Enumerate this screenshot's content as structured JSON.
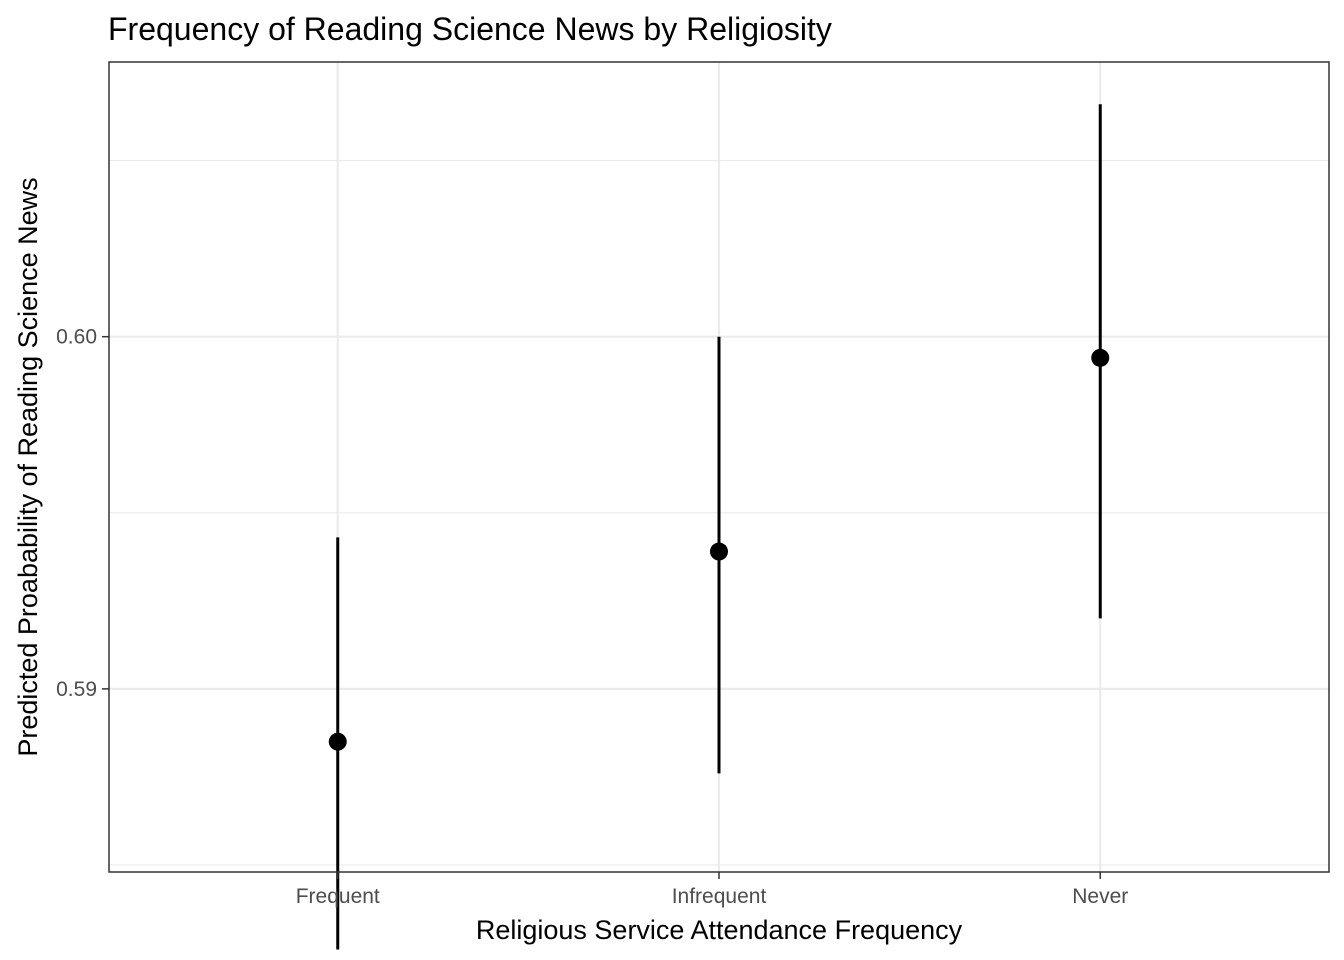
{
  "chart_data": {
    "type": "scatter",
    "title": "Frequency of Reading Science News by Religiosity",
    "xlabel": "Religious Service Attendance Frequency",
    "ylabel": "Predicted Proabability of Reading Science News",
    "categories": [
      "Frequent",
      "Infrequent",
      "Never"
    ],
    "values": [
      0.5885,
      0.5939,
      0.5994
    ],
    "lower": [
      0.5826,
      0.5876,
      0.592
    ],
    "upper": [
      0.5943,
      0.6,
      0.6066
    ],
    "ylim": [
      0.5848,
      0.6078
    ],
    "yticks": [
      0.59,
      0.6
    ],
    "ytick_labels": [
      "0.59",
      "0.60"
    ],
    "yminor": [
      0.585,
      0.595,
      0.605
    ],
    "grid": true,
    "colors": {
      "points": "#000000",
      "errorbars": "#000000",
      "grid": "#ebebeb",
      "border": "#333333"
    }
  }
}
